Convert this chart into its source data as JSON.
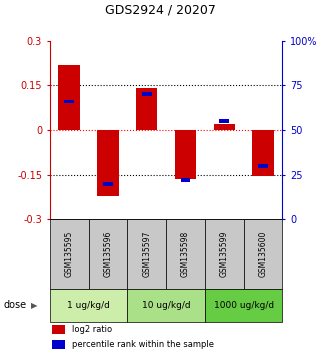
{
  "title": "GDS2924 / 20207",
  "samples": [
    "GSM135595",
    "GSM135596",
    "GSM135597",
    "GSM135598",
    "GSM135599",
    "GSM135600"
  ],
  "log2_ratio": [
    0.22,
    -0.22,
    0.14,
    -0.165,
    0.02,
    -0.155
  ],
  "percentile_rank": [
    66,
    20,
    70,
    22,
    55,
    30
  ],
  "ylim_left": [
    -0.3,
    0.3
  ],
  "ylim_right": [
    0,
    100
  ],
  "yticks_left": [
    -0.3,
    -0.15,
    0,
    0.15,
    0.3
  ],
  "yticks_right": [
    0,
    25,
    50,
    75,
    100
  ],
  "ytick_labels_right": [
    "0",
    "25",
    "50",
    "75",
    "100%"
  ],
  "dose_groups": [
    {
      "label": "1 ug/kg/d",
      "samples": [
        0,
        1
      ],
      "color": "#cceeaa"
    },
    {
      "label": "10 ug/kg/d",
      "samples": [
        2,
        3
      ],
      "color": "#aae088"
    },
    {
      "label": "1000 ug/kg/d",
      "samples": [
        4,
        5
      ],
      "color": "#66cc44"
    }
  ],
  "bar_width": 0.55,
  "red_color": "#cc0000",
  "blue_color": "#0000cc",
  "sample_box_color": "#c8c8c8",
  "legend_red_label": "log2 ratio",
  "legend_blue_label": "percentile rank within the sample",
  "left_axis_color": "#cc0000",
  "right_axis_color": "#0000cc"
}
